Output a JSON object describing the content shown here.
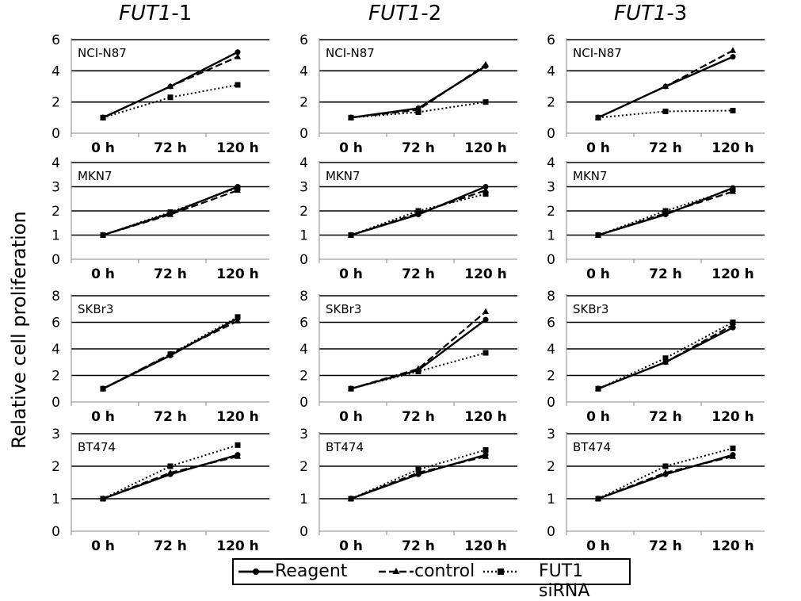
{
  "figure": {
    "y_axis_label": "Relative cell proliferation",
    "columns": [
      {
        "gene": "FUT1",
        "suffix": "-1"
      },
      {
        "gene": "FUT1",
        "suffix": "-2"
      },
      {
        "gene": "FUT1",
        "suffix": "-3"
      }
    ],
    "rows": [
      "NCI-N87",
      "MKN7",
      "SKBr3",
      "BT474"
    ],
    "legend": [
      {
        "label": "Reagent",
        "style": "solid",
        "marker": "circle"
      },
      {
        "label": "control",
        "style": "dashed",
        "marker": "triangle"
      },
      {
        "label": "FUT1 siRNA",
        "style": "dotted",
        "marker": "square"
      }
    ]
  },
  "chart_data": [
    {
      "type": "line",
      "column": "FUT1-1",
      "row": "NCI-N87",
      "panel_label": "NCI-N87",
      "categories": [
        "0 h",
        "72 h",
        "120 h"
      ],
      "ylim": [
        0,
        6
      ],
      "yticks": [
        0,
        2,
        4,
        6
      ],
      "grid": true,
      "series": [
        {
          "name": "Reagent",
          "values": [
            1,
            3.0,
            5.2
          ]
        },
        {
          "name": "control",
          "values": [
            1,
            3.0,
            4.9
          ]
        },
        {
          "name": "FUT1 siRNA",
          "values": [
            1,
            2.3,
            3.1
          ]
        }
      ]
    },
    {
      "type": "line",
      "column": "FUT1-2",
      "row": "NCI-N87",
      "panel_label": "NCI-N87",
      "categories": [
        "0 h",
        "72 h",
        "120 h"
      ],
      "ylim": [
        0,
        6
      ],
      "yticks": [
        0,
        2,
        4,
        6
      ],
      "grid": true,
      "series": [
        {
          "name": "Reagent",
          "values": [
            1,
            1.6,
            4.3
          ]
        },
        {
          "name": "control",
          "values": [
            1,
            1.5,
            4.4
          ]
        },
        {
          "name": "FUT1 siRNA",
          "values": [
            1,
            1.35,
            2.0
          ]
        }
      ]
    },
    {
      "type": "line",
      "column": "FUT1-3",
      "row": "NCI-N87",
      "panel_label": "NCI-N87",
      "categories": [
        "0 h",
        "72 h",
        "120 h"
      ],
      "ylim": [
        0,
        6
      ],
      "yticks": [
        0,
        2,
        4,
        6
      ],
      "grid": true,
      "series": [
        {
          "name": "Reagent",
          "values": [
            1,
            3.0,
            4.9
          ]
        },
        {
          "name": "control",
          "values": [
            1,
            3.0,
            5.3
          ]
        },
        {
          "name": "FUT1 siRNA",
          "values": [
            1,
            1.4,
            1.45
          ]
        }
      ]
    },
    {
      "type": "line",
      "column": "FUT1-1",
      "row": "MKN7",
      "panel_label": "MKN7",
      "categories": [
        "0 h",
        "72 h",
        "120 h"
      ],
      "ylim": [
        0,
        4
      ],
      "yticks": [
        0,
        1,
        2,
        3,
        4
      ],
      "grid": true,
      "series": [
        {
          "name": "Reagent",
          "values": [
            1,
            1.9,
            3.0
          ]
        },
        {
          "name": "control",
          "values": [
            1,
            1.85,
            2.85
          ]
        },
        {
          "name": "FUT1 siRNA",
          "values": [
            1,
            1.95,
            2.95
          ]
        }
      ]
    },
    {
      "type": "line",
      "column": "FUT1-2",
      "row": "MKN7",
      "panel_label": "MKN7",
      "categories": [
        "0 h",
        "72 h",
        "120 h"
      ],
      "ylim": [
        0,
        4
      ],
      "yticks": [
        0,
        1,
        2,
        3,
        4
      ],
      "grid": true,
      "series": [
        {
          "name": "Reagent",
          "values": [
            1,
            1.85,
            3.0
          ]
        },
        {
          "name": "control",
          "values": [
            1,
            1.9,
            2.85
          ]
        },
        {
          "name": "FUT1 siRNA",
          "values": [
            1,
            2.0,
            2.7
          ]
        }
      ]
    },
    {
      "type": "line",
      "column": "FUT1-3",
      "row": "MKN7",
      "panel_label": "MKN7",
      "categories": [
        "0 h",
        "72 h",
        "120 h"
      ],
      "ylim": [
        0,
        4
      ],
      "yticks": [
        0,
        1,
        2,
        3,
        4
      ],
      "grid": true,
      "series": [
        {
          "name": "Reagent",
          "values": [
            1,
            1.85,
            2.95
          ]
        },
        {
          "name": "control",
          "values": [
            1,
            1.9,
            2.8
          ]
        },
        {
          "name": "FUT1 siRNA",
          "values": [
            1,
            2.0,
            2.9
          ]
        }
      ]
    },
    {
      "type": "line",
      "column": "FUT1-1",
      "row": "SKBr3",
      "panel_label": "SKBr3",
      "categories": [
        "0 h",
        "72 h",
        "120 h"
      ],
      "ylim": [
        0,
        8
      ],
      "yticks": [
        0,
        2,
        4,
        6,
        8
      ],
      "grid": true,
      "series": [
        {
          "name": "Reagent",
          "values": [
            1,
            3.5,
            6.3
          ]
        },
        {
          "name": "control",
          "values": [
            1,
            3.6,
            6.1
          ]
        },
        {
          "name": "FUT1 siRNA",
          "values": [
            1,
            3.6,
            6.4
          ]
        }
      ]
    },
    {
      "type": "line",
      "column": "FUT1-2",
      "row": "SKBr3",
      "panel_label": "SKBr3",
      "categories": [
        "0 h",
        "72 h",
        "120 h"
      ],
      "ylim": [
        0,
        8
      ],
      "yticks": [
        0,
        2,
        4,
        6,
        8
      ],
      "grid": true,
      "series": [
        {
          "name": "Reagent",
          "values": [
            1,
            2.4,
            6.2
          ]
        },
        {
          "name": "control",
          "values": [
            1,
            2.5,
            6.8
          ]
        },
        {
          "name": "FUT1 siRNA",
          "values": [
            1,
            2.3,
            3.7
          ]
        }
      ]
    },
    {
      "type": "line",
      "column": "FUT1-3",
      "row": "SKBr3",
      "panel_label": "SKBr3",
      "categories": [
        "0 h",
        "72 h",
        "120 h"
      ],
      "ylim": [
        0,
        8
      ],
      "yticks": [
        0,
        2,
        4,
        6,
        8
      ],
      "grid": true,
      "series": [
        {
          "name": "Reagent",
          "values": [
            1,
            3.0,
            5.6
          ]
        },
        {
          "name": "control",
          "values": [
            1,
            3.0,
            5.8
          ]
        },
        {
          "name": "FUT1 siRNA",
          "values": [
            1,
            3.3,
            6.0
          ]
        }
      ]
    },
    {
      "type": "line",
      "column": "FUT1-1",
      "row": "BT474",
      "panel_label": "BT474",
      "categories": [
        "0 h",
        "72 h",
        "120 h"
      ],
      "ylim": [
        0,
        3
      ],
      "yticks": [
        0,
        1,
        2,
        3
      ],
      "grid": true,
      "series": [
        {
          "name": "Reagent",
          "values": [
            1,
            1.75,
            2.35
          ]
        },
        {
          "name": "control",
          "values": [
            1,
            1.8,
            2.3
          ]
        },
        {
          "name": "FUT1 siRNA",
          "values": [
            1,
            2.0,
            2.65
          ]
        }
      ]
    },
    {
      "type": "line",
      "column": "FUT1-2",
      "row": "BT474",
      "panel_label": "BT474",
      "categories": [
        "0 h",
        "72 h",
        "120 h"
      ],
      "ylim": [
        0,
        3
      ],
      "yticks": [
        0,
        1,
        2,
        3
      ],
      "grid": true,
      "series": [
        {
          "name": "Reagent",
          "values": [
            1,
            1.75,
            2.35
          ]
        },
        {
          "name": "control",
          "values": [
            1,
            1.8,
            2.3
          ]
        },
        {
          "name": "FUT1 siRNA",
          "values": [
            1,
            1.9,
            2.5
          ]
        }
      ]
    },
    {
      "type": "line",
      "column": "FUT1-3",
      "row": "BT474",
      "panel_label": "BT474",
      "categories": [
        "0 h",
        "72 h",
        "120 h"
      ],
      "ylim": [
        0,
        3
      ],
      "yticks": [
        0,
        1,
        2,
        3
      ],
      "grid": true,
      "series": [
        {
          "name": "Reagent",
          "values": [
            1,
            1.75,
            2.35
          ]
        },
        {
          "name": "control",
          "values": [
            1,
            1.8,
            2.3
          ]
        },
        {
          "name": "FUT1 siRNA",
          "values": [
            1,
            2.0,
            2.55
          ]
        }
      ]
    }
  ]
}
